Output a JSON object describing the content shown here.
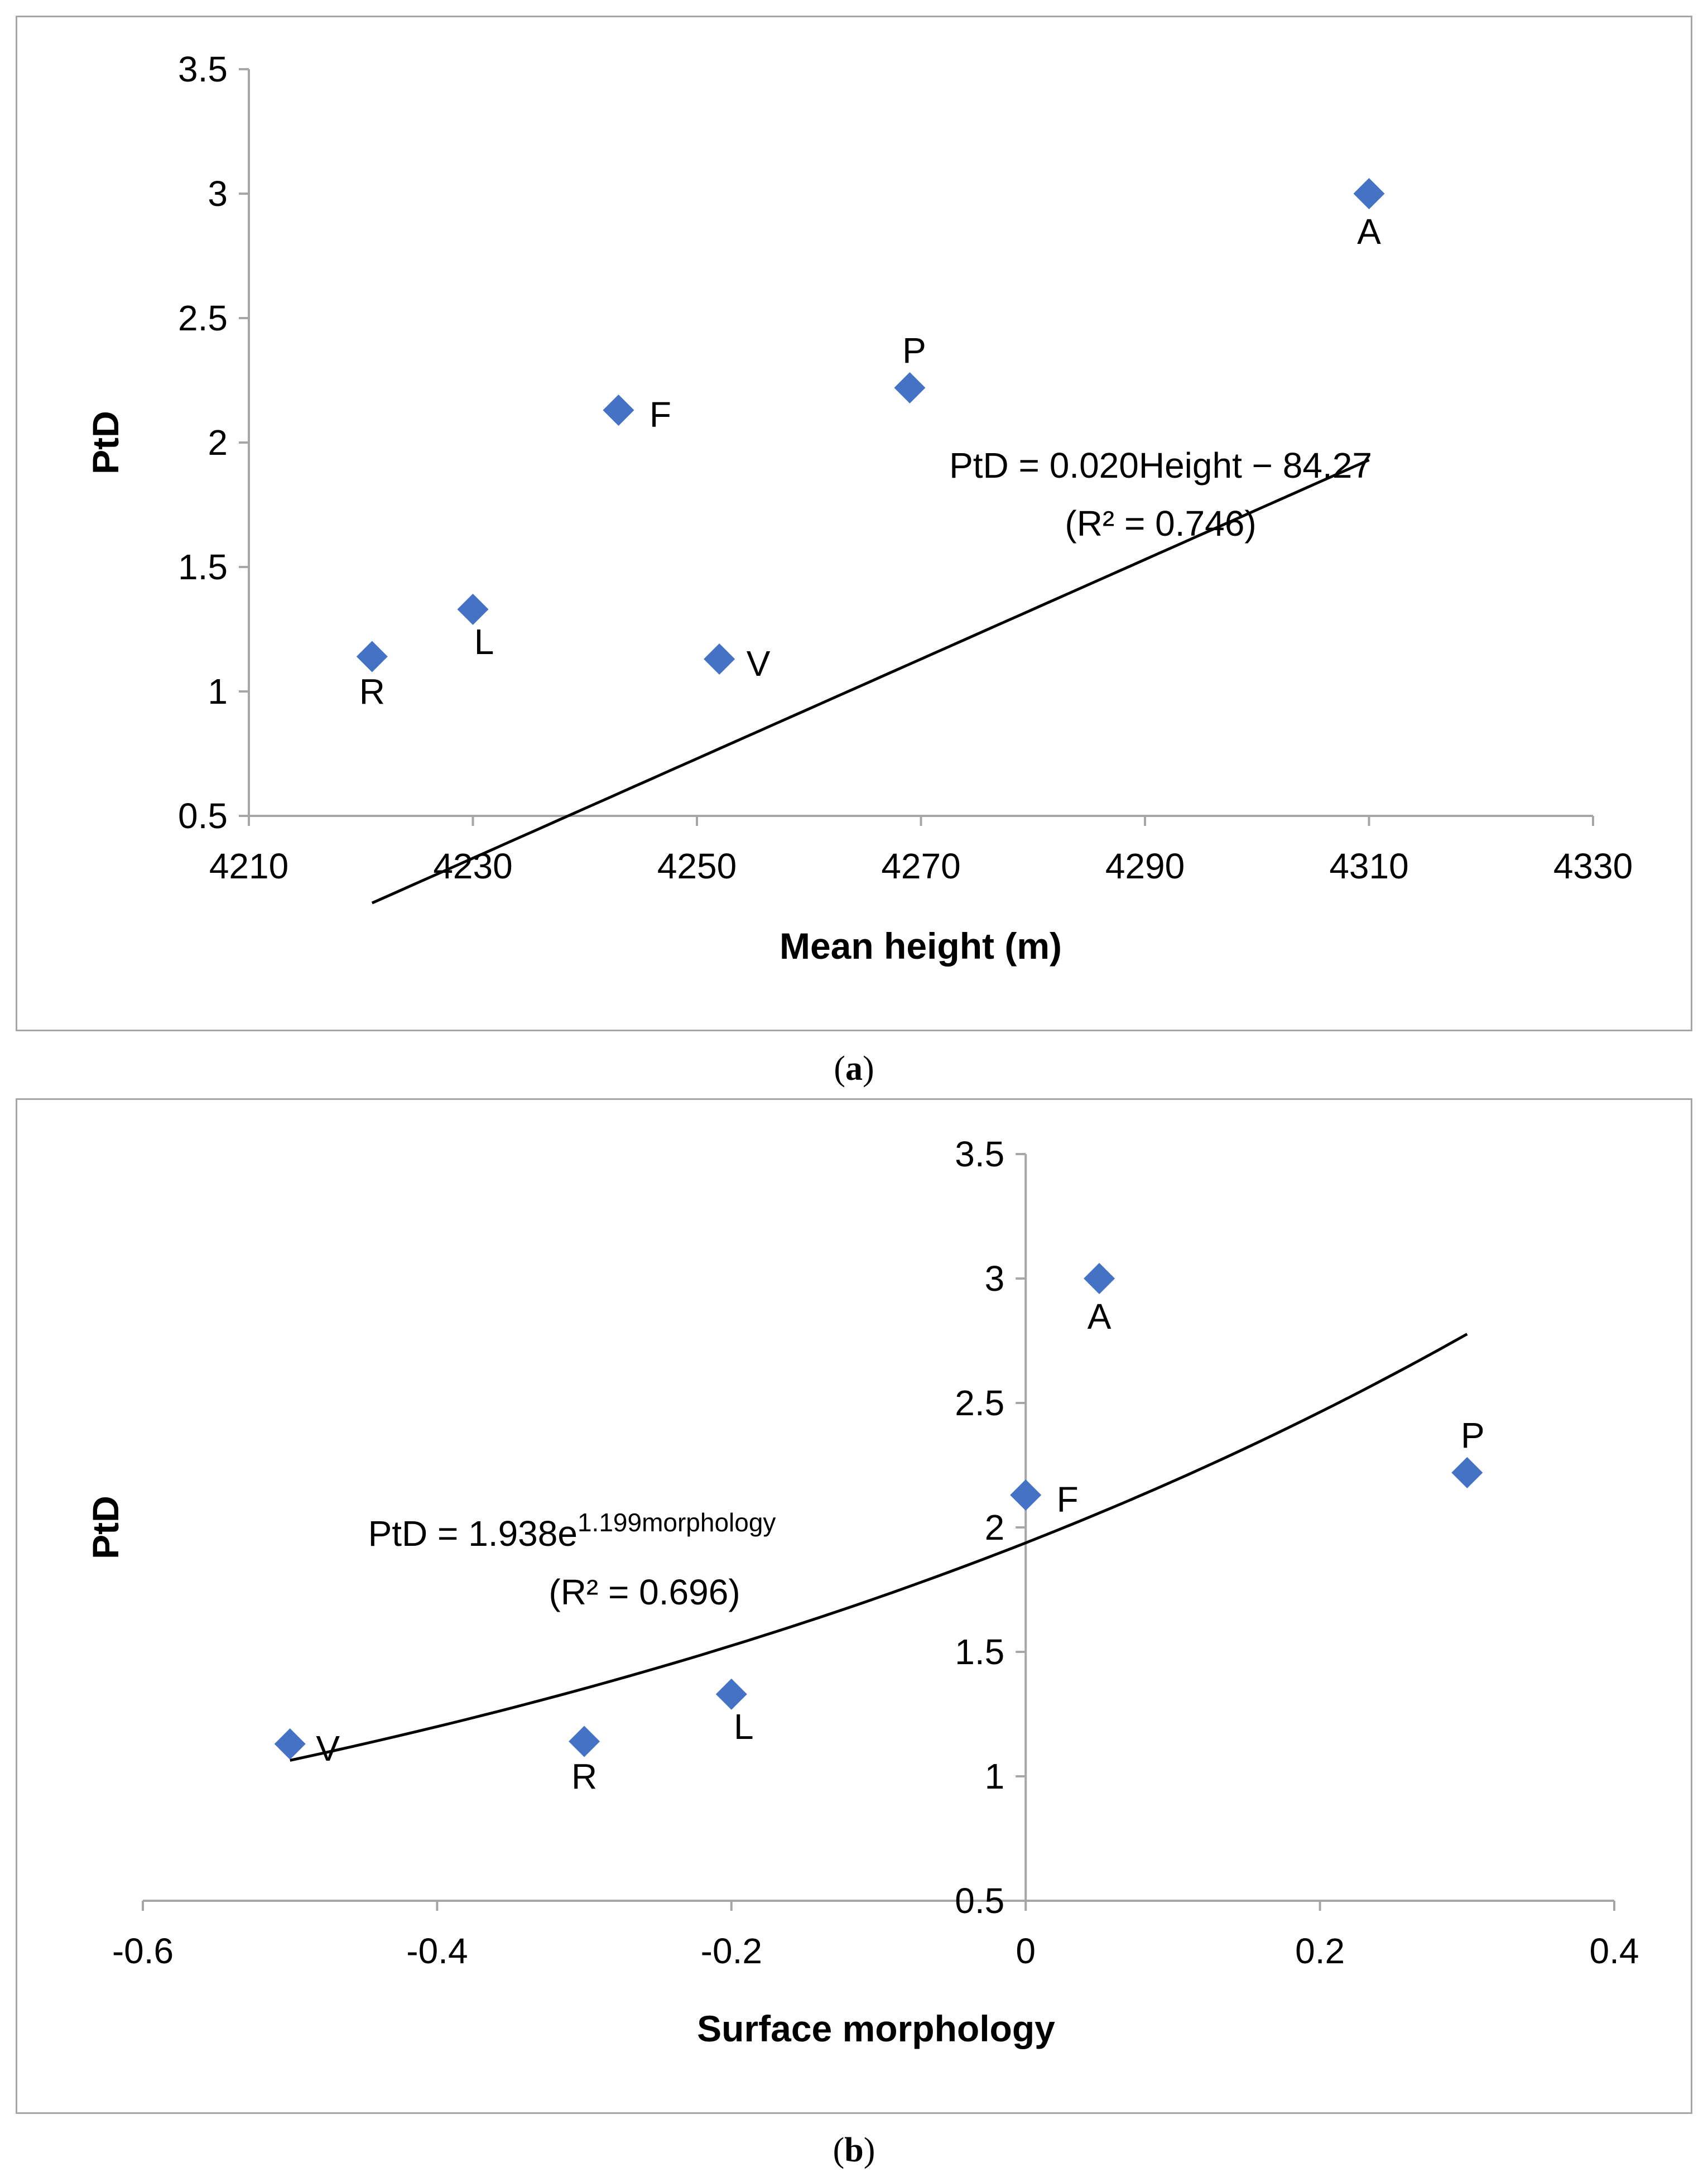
{
  "chart_data": [
    {
      "type": "scatter",
      "panel_label": "a",
      "xlabel": "Mean height (m)",
      "ylabel": "PtD",
      "xlim": [
        4210,
        4330
      ],
      "ylim": [
        0.5,
        3.5
      ],
      "xticks": [
        4210,
        4230,
        4250,
        4270,
        4290,
        4310,
        4330
      ],
      "yticks": [
        0.5,
        1,
        1.5,
        2,
        2.5,
        3,
        3.5
      ],
      "xtick_labels": [
        "4210",
        "4230",
        "4250",
        "4270",
        "4290",
        "4310",
        "4330"
      ],
      "ytick_labels": [
        "0.5",
        "1",
        "1.5",
        "2",
        "2.5",
        "3",
        "3.5"
      ],
      "points": [
        {
          "label": "R",
          "x": 4221,
          "y": 1.14
        },
        {
          "label": "L",
          "x": 4230,
          "y": 1.33
        },
        {
          "label": "F",
          "x": 4243,
          "y": 2.13
        },
        {
          "label": "V",
          "x": 4252,
          "y": 1.13
        },
        {
          "label": "P",
          "x": 4269,
          "y": 2.22
        },
        {
          "label": "A",
          "x": 4310,
          "y": 3.0
        }
      ],
      "trendline": {
        "type": "linear",
        "slope": 0.02,
        "intercept": -84.27,
        "x_range": [
          4221,
          4310
        ]
      },
      "equation": "PtD = 0.020Height − 84.27",
      "r2_text": "(R² = 0.746)",
      "marker_color": "#4472c4",
      "grid": false
    },
    {
      "type": "scatter",
      "panel_label": "b",
      "xlabel": "Surface morphology",
      "ylabel": "PtD",
      "xlim": [
        -0.6,
        0.4
      ],
      "ylim": [
        0.5,
        3.5
      ],
      "xticks": [
        -0.6,
        -0.4,
        -0.2,
        0,
        0.2,
        0.4
      ],
      "yticks": [
        0.5,
        1,
        1.5,
        2,
        2.5,
        3,
        3.5
      ],
      "xtick_labels": [
        "-0.6",
        "-0.4",
        "-0.2",
        "0",
        "0.2",
        "0.4"
      ],
      "ytick_labels": [
        "0.5",
        "1",
        "1.5",
        "2",
        "2.5",
        "3",
        "3.5"
      ],
      "points": [
        {
          "label": "V",
          "x": -0.5,
          "y": 1.13
        },
        {
          "label": "R",
          "x": -0.3,
          "y": 1.14
        },
        {
          "label": "L",
          "x": -0.2,
          "y": 1.33
        },
        {
          "label": "F",
          "x": 0.0,
          "y": 2.13
        },
        {
          "label": "A",
          "x": 0.05,
          "y": 3.0
        },
        {
          "label": "P",
          "x": 0.3,
          "y": 2.22
        }
      ],
      "trendline": {
        "type": "exponential",
        "a": 1.938,
        "b": 1.199,
        "x_range": [
          -0.5,
          0.3
        ]
      },
      "equation_main": "PtD = 1.938e",
      "equation_exponent": "1.199morphology",
      "r2_text": "(R² = 0.696)",
      "marker_color": "#4472c4",
      "grid": false
    }
  ],
  "captions": {
    "a": "a",
    "b": "b"
  }
}
